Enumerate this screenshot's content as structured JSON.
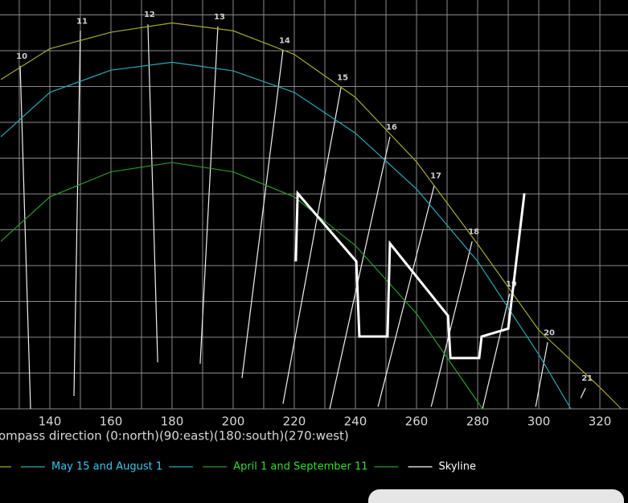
{
  "chart_data": {
    "type": "line",
    "x_label": "ompass direction (0:north)(90:east)(180:south)(270:west)",
    "xlim": [
      123.7,
      329.2
    ],
    "ylim": [
      0,
      57.1
    ],
    "xticks": [
      140,
      160,
      180,
      200,
      220,
      240,
      260,
      280,
      300,
      320
    ],
    "grid": true,
    "series": [
      {
        "color": "#a8a832",
        "width": 1.2,
        "x": [
          124,
          140,
          160,
          180,
          200,
          220,
          240,
          260,
          280,
          300,
          320,
          327
        ],
        "values": [
          46,
          50.3,
          52.6,
          53.9,
          52.8,
          49.5,
          43.5,
          34.5,
          23,
          11,
          3,
          0
        ]
      },
      {
        "name": "May 15 and August 1",
        "color": "#2aa8b8",
        "text_color": "#3cc8f0",
        "width": 1.2,
        "x": [
          124,
          140,
          160,
          180,
          200,
          220,
          240,
          260,
          280,
          300,
          310.5
        ],
        "values": [
          38,
          44.2,
          47.3,
          48.4,
          47.2,
          44.2,
          38.5,
          30.7,
          20.6,
          7.6,
          0
        ]
      },
      {
        "name": "April 1 and September 11",
        "color": "#2a9a2a",
        "text_color": "#33dd33",
        "width": 1.2,
        "x": [
          124,
          140,
          160,
          180,
          200,
          220,
          240,
          260,
          281.6
        ],
        "values": [
          23.4,
          29.6,
          33.1,
          34.4,
          33.1,
          29.6,
          22.8,
          13.3,
          0
        ]
      },
      {
        "name": "Skyline",
        "color": "#ffffff",
        "text_color": "#ffffff",
        "width": 3,
        "x": [
          220.5,
          221.1,
          240.3,
          241.3,
          250.5,
          251.3,
          270.3,
          271.1,
          280.5,
          281.3,
          290.0,
          295.3
        ],
        "values": [
          20.6,
          30.1,
          20.6,
          10.1,
          10.1,
          23.1,
          13.0,
          7.1,
          7.1,
          10.1,
          11.2,
          30.1
        ]
      }
    ],
    "hour_lines": [
      {
        "label": "10",
        "x": [
          130.3,
          133.7
        ],
        "y": [
          47.9,
          0
        ]
      },
      {
        "label": "11",
        "x": [
          150.0,
          147.9
        ],
        "y": [
          52.8,
          1.8
        ]
      },
      {
        "label": "12",
        "x": [
          172.1,
          175.3
        ],
        "y": [
          53.7,
          6.5
        ]
      },
      {
        "label": "13",
        "x": [
          195.0,
          189.2
        ],
        "y": [
          53.4,
          6.3
        ]
      },
      {
        "label": "14",
        "x": [
          216.3,
          202.9
        ],
        "y": [
          50.1,
          4.3
        ]
      },
      {
        "label": "15",
        "x": [
          235.3,
          216.3
        ],
        "y": [
          44.9,
          0.7
        ]
      },
      {
        "label": "16",
        "x": [
          251.3,
          231.6
        ],
        "y": [
          38.0,
          0
        ]
      },
      {
        "label": "17",
        "x": [
          265.8,
          247.4
        ],
        "y": [
          31.2,
          0.3
        ]
      },
      {
        "label": "18",
        "x": [
          278.2,
          264.8
        ],
        "y": [
          23.4,
          0.3
        ]
      },
      {
        "label": "19",
        "x": [
          290.5,
          281.6
        ],
        "y": [
          16.1,
          0
        ]
      },
      {
        "label": "20",
        "x": [
          302.9,
          299.0
        ],
        "y": [
          9.3,
          0.3
        ]
      },
      {
        "label": "21",
        "x": [
          315.3,
          313.7
        ],
        "y": [
          2.9,
          1.5
        ]
      }
    ]
  }
}
